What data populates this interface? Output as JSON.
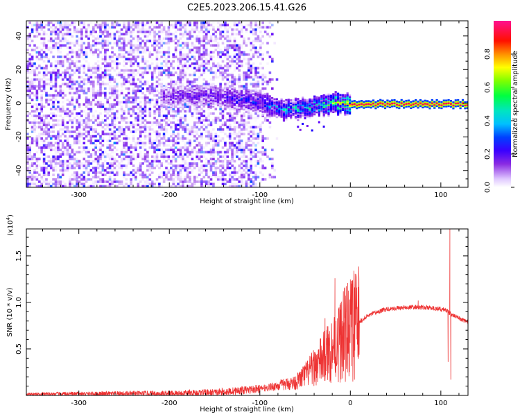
{
  "title": "C2E5.2023.206.15.41.G26",
  "chart_data": [
    {
      "type": "heatmap",
      "xlabel": "Height of straight line (km)",
      "ylabel": "Frequency (Hz)",
      "xlim": [
        -358,
        130
      ],
      "ylim": [
        -50,
        49
      ],
      "xticks": [
        -300,
        -200,
        -100,
        0,
        100
      ],
      "yticks": [
        -40,
        -20,
        0,
        20,
        40
      ],
      "colorbar": {
        "label": "Normalized spectral amplitude",
        "range": [
          0.0,
          1.0
        ],
        "ticks": [
          "0.0",
          "0.2",
          "0.4",
          "0.6",
          "0.8"
        ],
        "colors": [
          "#ffffff",
          "#e9d6ff",
          "#8a2be2",
          "#5a00ff",
          "#0000ff",
          "#00bfff",
          "#00ff7f",
          "#80ff00",
          "#ffff00",
          "#ff8000",
          "#ff0000",
          "#ff00a0"
        ]
      },
      "features": {
        "noise_region_x": [
          -358,
          -110
        ],
        "noise_amplitude": [
          0.05,
          0.45
        ],
        "signal_line_freq_hz": 0,
        "signal_start_x": -210,
        "signal_drift": [
          {
            "x": -210,
            "freq": 5,
            "amp": 0.3
          },
          {
            "x": -150,
            "freq": 5,
            "amp": 0.35
          },
          {
            "x": -100,
            "freq": 1,
            "amp": 0.45
          },
          {
            "x": -75,
            "freq": -3,
            "amp": 0.55
          },
          {
            "x": -50,
            "freq": -2,
            "amp": 0.6
          },
          {
            "x": -30,
            "freq": 0,
            "amp": 0.7
          },
          {
            "x": -15,
            "freq": 1,
            "amp": 0.8
          },
          {
            "x": 0,
            "freq": 0,
            "amp": 0.95
          },
          {
            "x": 130,
            "freq": 0,
            "amp": 0.95
          }
        ]
      }
    },
    {
      "type": "line",
      "xlabel": "Height of straight line (km)",
      "ylabel": "SNR (10 * v/v)",
      "multiplier": "(x10",
      "multiplier_exp": "4",
      "multiplier_close": ")",
      "xlim": [
        -358,
        130
      ],
      "ylim": [
        0,
        17900
      ],
      "xticks": [
        -300,
        -200,
        -100,
        0,
        100
      ],
      "yticks": [
        5000,
        10000,
        15000
      ],
      "ytick_labels": [
        "0.5",
        "1.0",
        "1.5"
      ],
      "series": [
        {
          "color": "#ee3333",
          "envelope": [
            {
              "x": -358,
              "y": 150
            },
            {
              "x": -200,
              "y": 200
            },
            {
              "x": -150,
              "y": 300
            },
            {
              "x": -100,
              "y": 700
            },
            {
              "x": -60,
              "y": 1400
            },
            {
              "x": -40,
              "y": 3000
            },
            {
              "x": -20,
              "y": 5000
            },
            {
              "x": 0,
              "y": 7200
            },
            {
              "x": 20,
              "y": 8600
            },
            {
              "x": 40,
              "y": 9300
            },
            {
              "x": 70,
              "y": 9500
            },
            {
              "x": 90,
              "y": 9400
            },
            {
              "x": 105,
              "y": 9200
            },
            {
              "x": 115,
              "y": 8500
            },
            {
              "x": 130,
              "y": 7900
            }
          ],
          "spikes": [
            {
              "x": -28,
              "y": 8300
            },
            {
              "x": -17,
              "y": 12600
            },
            {
              "x": 75,
              "y": 10200
            },
            {
              "x": 108,
              "y": 3600
            },
            {
              "x": 110,
              "y": 17900
            },
            {
              "x": 111,
              "y": 1700
            }
          ]
        }
      ]
    }
  ]
}
